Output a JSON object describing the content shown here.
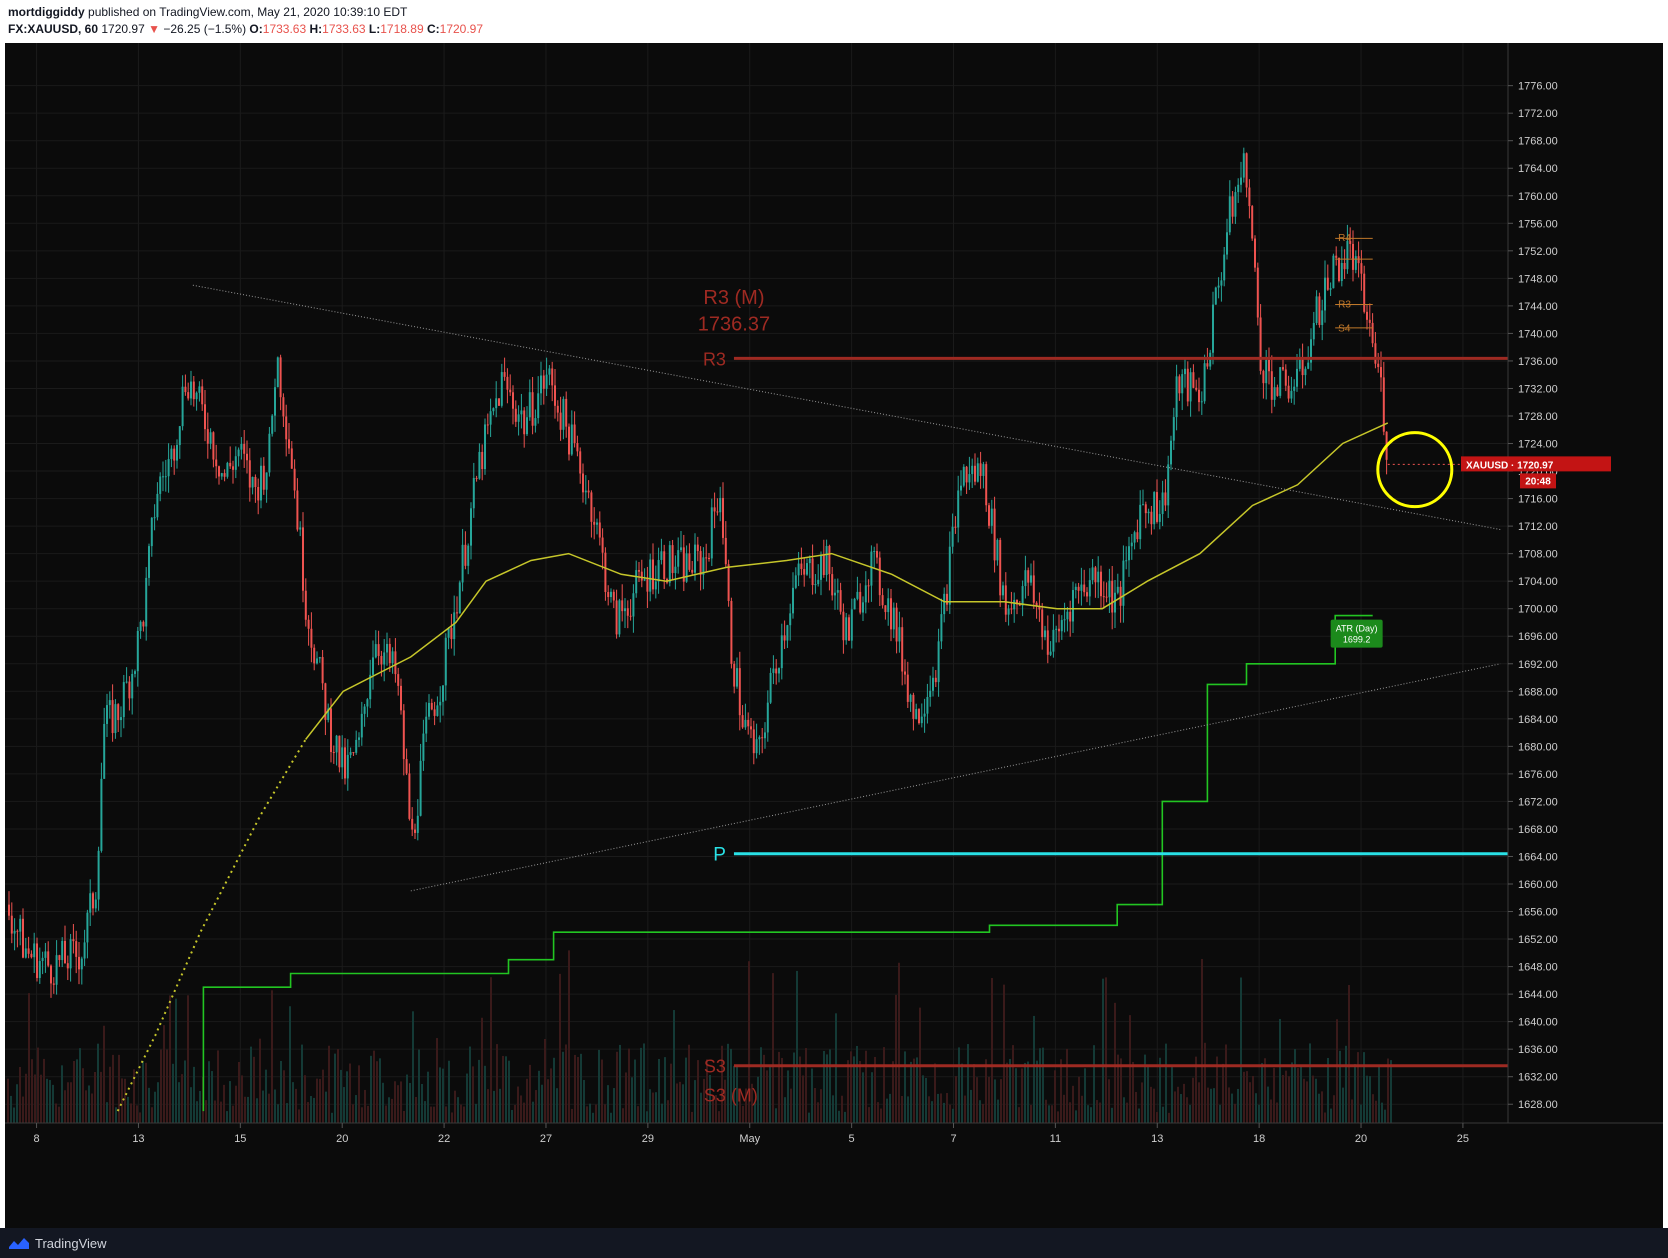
{
  "header": {
    "author": "mortdiggiddy",
    "published": "published on TradingView.com, May 21, 2020 10:39:10 EDT",
    "symbol": "FX:XAUUSD, 60",
    "last": "1720.97",
    "change": "−26.25 (−1.5%)",
    "open_label": "O:",
    "open": "1733.63",
    "high_label": "H:",
    "high": "1733.63",
    "low_label": "L:",
    "low": "1718.89",
    "close_label": "C:",
    "close": "1720.97"
  },
  "footer": {
    "brand": "TradingView"
  },
  "colors": {
    "bg": "#0b0b0b",
    "up": "#26a69a",
    "down": "#ef5350",
    "ma": "#c6c62a",
    "atr": "#22c522",
    "pivot": "#29e1e6",
    "level": "#9e2a22",
    "circle": "#ffff00"
  },
  "chart_data": {
    "type": "candlestick",
    "symbol": "XAUUSD",
    "timeframe": "60",
    "ylim": [
      1626,
      1779
    ],
    "y_ticks": [
      "1776.00",
      "1772.00",
      "1768.00",
      "1764.00",
      "1760.00",
      "1756.00",
      "1752.00",
      "1748.00",
      "1744.00",
      "1740.00",
      "1736.00",
      "1732.00",
      "1728.00",
      "1724.00",
      "1720.00",
      "1716.00",
      "1712.00",
      "1708.00",
      "1704.00",
      "1700.00",
      "1696.00",
      "1692.00",
      "1688.00",
      "1684.00",
      "1680.00",
      "1676.00",
      "1672.00",
      "1668.00",
      "1664.00",
      "1660.00",
      "1656.00",
      "1652.00",
      "1648.00",
      "1644.00",
      "1640.00",
      "1636.00",
      "1632.00",
      "1628.00"
    ],
    "x_ticks": [
      "8",
      "13",
      "15",
      "20",
      "22",
      "27",
      "29",
      "May",
      "5",
      "7",
      "11",
      "13",
      "18",
      "20",
      "25"
    ],
    "price_path": [
      [
        0,
        1657
      ],
      [
        0.014,
        1650
      ],
      [
        0.03,
        1648
      ],
      [
        0.05,
        1650
      ],
      [
        0.06,
        1660
      ],
      [
        0.065,
        1683
      ],
      [
        0.075,
        1685
      ],
      [
        0.085,
        1692
      ],
      [
        0.092,
        1700
      ],
      [
        0.1,
        1717
      ],
      [
        0.11,
        1722
      ],
      [
        0.12,
        1734
      ],
      [
        0.135,
        1726
      ],
      [
        0.145,
        1719
      ],
      [
        0.155,
        1723
      ],
      [
        0.165,
        1717
      ],
      [
        0.175,
        1722
      ],
      [
        0.18,
        1737
      ],
      [
        0.19,
        1722
      ],
      [
        0.2,
        1700
      ],
      [
        0.215,
        1683
      ],
      [
        0.225,
        1676
      ],
      [
        0.235,
        1680
      ],
      [
        0.245,
        1696
      ],
      [
        0.26,
        1690
      ],
      [
        0.27,
        1666
      ],
      [
        0.28,
        1683
      ],
      [
        0.29,
        1690
      ],
      [
        0.3,
        1702
      ],
      [
        0.315,
        1721
      ],
      [
        0.33,
        1733
      ],
      [
        0.345,
        1727
      ],
      [
        0.36,
        1734
      ],
      [
        0.375,
        1725
      ],
      [
        0.39,
        1715
      ],
      [
        0.405,
        1698
      ],
      [
        0.42,
        1703
      ],
      [
        0.435,
        1707
      ],
      [
        0.45,
        1706
      ],
      [
        0.465,
        1707
      ],
      [
        0.475,
        1718
      ],
      [
        0.482,
        1695
      ],
      [
        0.49,
        1684
      ],
      [
        0.5,
        1678
      ],
      [
        0.51,
        1690
      ],
      [
        0.525,
        1704
      ],
      [
        0.545,
        1707
      ],
      [
        0.56,
        1696
      ],
      [
        0.575,
        1707
      ],
      [
        0.59,
        1699
      ],
      [
        0.605,
        1684
      ],
      [
        0.62,
        1693
      ],
      [
        0.635,
        1719
      ],
      [
        0.65,
        1720
      ],
      [
        0.665,
        1700
      ],
      [
        0.68,
        1704
      ],
      [
        0.695,
        1694
      ],
      [
        0.71,
        1702
      ],
      [
        0.725,
        1705
      ],
      [
        0.74,
        1701
      ],
      [
        0.755,
        1715
      ],
      [
        0.77,
        1715
      ],
      [
        0.78,
        1733
      ],
      [
        0.795,
        1731
      ],
      [
        0.805,
        1745
      ],
      [
        0.815,
        1758
      ],
      [
        0.825,
        1765
      ],
      [
        0.835,
        1736
      ],
      [
        0.845,
        1732
      ],
      [
        0.86,
        1733
      ],
      [
        0.875,
        1745
      ],
      [
        0.885,
        1750
      ],
      [
        0.895,
        1752
      ],
      [
        0.905,
        1743
      ],
      [
        0.915,
        1732
      ],
      [
        0.92,
        1720.97
      ]
    ],
    "moving_average": [
      [
        0.075,
        1627
      ],
      [
        0.1,
        1638
      ],
      [
        0.13,
        1653
      ],
      [
        0.17,
        1670
      ],
      [
        0.2,
        1681
      ],
      [
        0.225,
        1688
      ],
      [
        0.27,
        1693
      ],
      [
        0.3,
        1698
      ],
      [
        0.32,
        1704
      ],
      [
        0.35,
        1707
      ],
      [
        0.375,
        1708
      ],
      [
        0.41,
        1705
      ],
      [
        0.44,
        1704
      ],
      [
        0.48,
        1706
      ],
      [
        0.52,
        1707
      ],
      [
        0.55,
        1708
      ],
      [
        0.59,
        1705
      ],
      [
        0.625,
        1701
      ],
      [
        0.665,
        1701
      ],
      [
        0.7,
        1700
      ],
      [
        0.73,
        1700
      ],
      [
        0.76,
        1704
      ],
      [
        0.795,
        1708
      ],
      [
        0.83,
        1715
      ],
      [
        0.86,
        1718
      ],
      [
        0.89,
        1724
      ],
      [
        0.92,
        1727
      ]
    ],
    "atr_steps": [
      [
        0.132,
        1627
      ],
      [
        0.132,
        1645
      ],
      [
        0.19,
        1645
      ],
      [
        0.19,
        1647
      ],
      [
        0.335,
        1647
      ],
      [
        0.335,
        1649
      ],
      [
        0.365,
        1649
      ],
      [
        0.365,
        1653
      ],
      [
        0.655,
        1653
      ],
      [
        0.655,
        1654
      ],
      [
        0.74,
        1654
      ],
      [
        0.74,
        1657
      ],
      [
        0.77,
        1657
      ],
      [
        0.77,
        1672
      ],
      [
        0.8,
        1672
      ],
      [
        0.8,
        1689
      ],
      [
        0.826,
        1689
      ],
      [
        0.826,
        1692
      ],
      [
        0.885,
        1692
      ],
      [
        0.885,
        1699
      ],
      [
        0.91,
        1699
      ]
    ],
    "trendline_upper": [
      [
        0.125,
        1747
      ],
      [
        0.995,
        1711.5
      ]
    ],
    "trendline_lower": [
      [
        0.27,
        1659
      ],
      [
        0.995,
        1692
      ]
    ],
    "levels": [
      {
        "label": "R3",
        "value": 1736.37,
        "style": "level"
      },
      {
        "label": "P",
        "value": 1664.4,
        "style": "pivot"
      },
      {
        "label": "S3",
        "value": 1633.6,
        "style": "level"
      }
    ],
    "annotations": {
      "r3_month": "R3 (M)",
      "r3_month_value": "1736.37",
      "s3_month": "S3 (M)",
      "r4": "R4",
      "r3_small": "R3",
      "s4": "S4",
      "atr_label": "ATR (Day)",
      "atr_value": "1699.2",
      "price_tag": "XAUUSD · 1720.97",
      "countdown": "20:48"
    },
    "small_levels": [
      1753.8,
      1750.8,
      1744.2,
      1740.8
    ],
    "grid": true,
    "legend": "none"
  }
}
